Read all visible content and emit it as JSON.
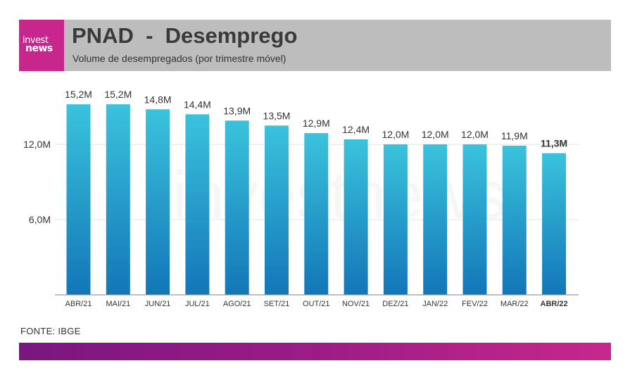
{
  "header": {
    "logo_line1": "invest",
    "logo_line2": "news",
    "title": "PNAD  -  Desemprego",
    "subtitle": "Volume de desempregados (por trimestre móvel)"
  },
  "watermark": "investnews",
  "source": "FONTE: IBGE",
  "colors": {
    "brand": "#c7278d",
    "header_bg": "#bdbdbd",
    "bar_top": "#3ac3dc",
    "bar_bottom": "#1376b8",
    "footer_start": "#7a1680",
    "footer_end": "#c7278d"
  },
  "chart_data": {
    "type": "bar",
    "title": "PNAD  -  Desemprego",
    "subtitle": "Volume de desempregados (por trimestre móvel)",
    "categories": [
      "ABR/21",
      "MAI/21",
      "JUN/21",
      "JUL/21",
      "AGO/21",
      "SET/21",
      "OUT/21",
      "NOV/21",
      "DEZ/21",
      "JAN/22",
      "FEV/22",
      "MAR/22",
      "ABR/22"
    ],
    "values": [
      15.2,
      15.2,
      14.8,
      14.4,
      13.9,
      13.5,
      12.9,
      12.4,
      12.0,
      12.0,
      12.0,
      11.9,
      11.3
    ],
    "value_labels": [
      "15,2M",
      "15,2M",
      "14,8M",
      "14,4M",
      "13,9M",
      "13,5M",
      "12,9M",
      "12,4M",
      "12,0M",
      "12,0M",
      "12,0M",
      "11,9M",
      "11,3M"
    ],
    "highlight_index": 12,
    "yticks": [
      6.0,
      12.0
    ],
    "ytick_labels": [
      "6,0M",
      "12,0M"
    ],
    "ylim": [
      0,
      16.5
    ],
    "grid": true,
    "xlabel": "",
    "ylabel": ""
  }
}
